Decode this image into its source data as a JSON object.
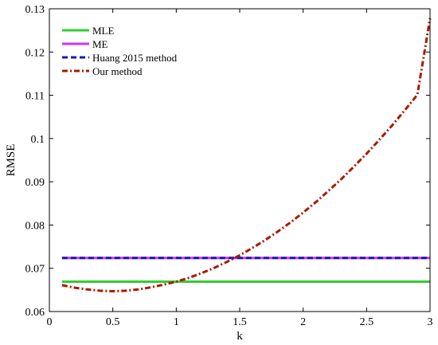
{
  "chart_data": {
    "type": "line",
    "xlabel": "k",
    "ylabel": "RMSE",
    "xlim": [
      0,
      3
    ],
    "ylim": [
      0.06,
      0.13
    ],
    "xticks": [
      "0",
      "0.5",
      "1",
      "1.5",
      "2",
      "2.5",
      "3"
    ],
    "yticks": [
      "0.06",
      "0.07",
      "0.08",
      "0.09",
      "0.1",
      "0.11",
      "0.12",
      "0.13"
    ],
    "grid": false,
    "legend_position": "top-left",
    "series": [
      {
        "name": "MLE",
        "color": "#33cc33",
        "style": "solid",
        "x": [
          0.1,
          3
        ],
        "y": [
          0.0669,
          0.0669
        ]
      },
      {
        "name": "ME",
        "color": "#cc33ff",
        "style": "solid",
        "x": [
          0.1,
          3
        ],
        "y": [
          0.0724,
          0.0724
        ]
      },
      {
        "name": "Huang 2015 method",
        "color": "#1a1aaa",
        "style": "dashed",
        "x": [
          0.1,
          3
        ],
        "y": [
          0.0724,
          0.0724
        ]
      },
      {
        "name": "Our method",
        "color": "#aa1a00",
        "style": "dashdot",
        "x": [
          0.1,
          0.2,
          0.3,
          0.4,
          0.5,
          0.6,
          0.7,
          0.8,
          0.9,
          1.0,
          1.1,
          1.2,
          1.3,
          1.4,
          1.5,
          1.6,
          1.7,
          1.8,
          1.9,
          2.0,
          2.1,
          2.2,
          2.3,
          2.4,
          2.5,
          2.6,
          2.7,
          2.8,
          2.9,
          3.0
        ],
        "y": [
          0.0661,
          0.0655,
          0.0651,
          0.0648,
          0.0647,
          0.0648,
          0.0651,
          0.0656,
          0.0662,
          0.0669,
          0.0678,
          0.0689,
          0.0701,
          0.0715,
          0.073,
          0.0747,
          0.0765,
          0.0785,
          0.0806,
          0.0829,
          0.0853,
          0.0879,
          0.0906,
          0.0935,
          0.0965,
          0.0997,
          0.103,
          0.1065,
          0.1101,
          0.1278
        ]
      }
    ]
  }
}
